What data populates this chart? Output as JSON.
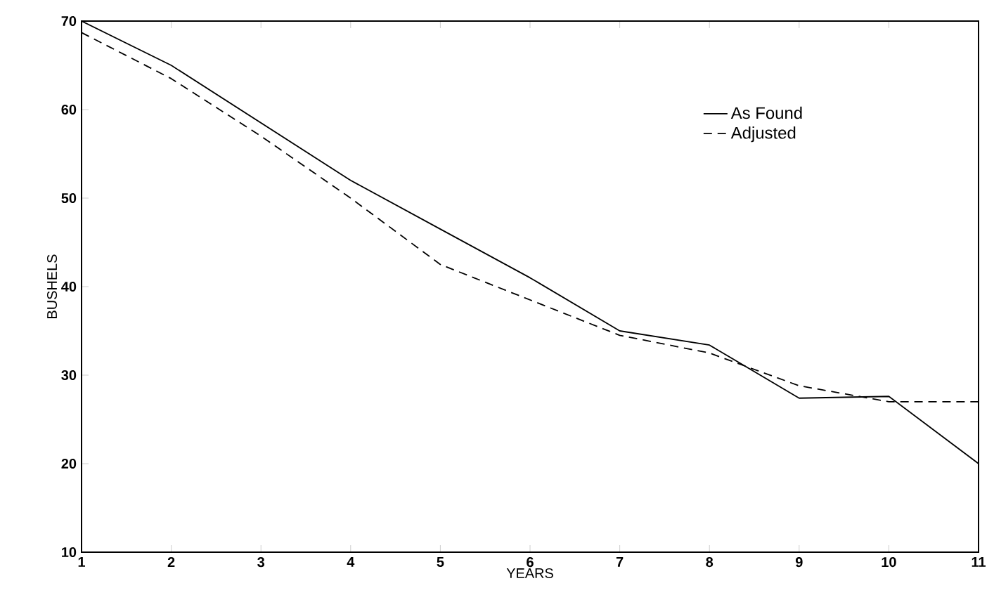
{
  "chart_data": {
    "type": "line",
    "xlabel": "YEARS",
    "ylabel": "BUSHELS",
    "x": [
      1,
      2,
      3,
      4,
      5,
      6,
      7,
      8,
      9,
      10,
      11
    ],
    "series": [
      {
        "name": "As Found",
        "color": "#000000",
        "line_style": "solid",
        "values": [
          70,
          65,
          58.5,
          52,
          46.5,
          41,
          35,
          33.4,
          27.4,
          27.6,
          20
        ]
      },
      {
        "name": "Adjusted",
        "color": "#000000",
        "line_style": "dashed",
        "values": [
          68.7,
          63.5,
          57,
          50,
          42.5,
          38.5,
          34.5,
          32.5,
          28.8,
          27,
          27
        ]
      }
    ],
    "xlim": [
      1,
      11
    ],
    "xticks": [
      1,
      2,
      3,
      4,
      5,
      6,
      7,
      8,
      9,
      10,
      11
    ],
    "ylim": [
      10,
      70
    ],
    "yticks": [
      10,
      20,
      30,
      40,
      50,
      60,
      70
    ],
    "legend": "top right",
    "marker": "none",
    "grid": false
  }
}
